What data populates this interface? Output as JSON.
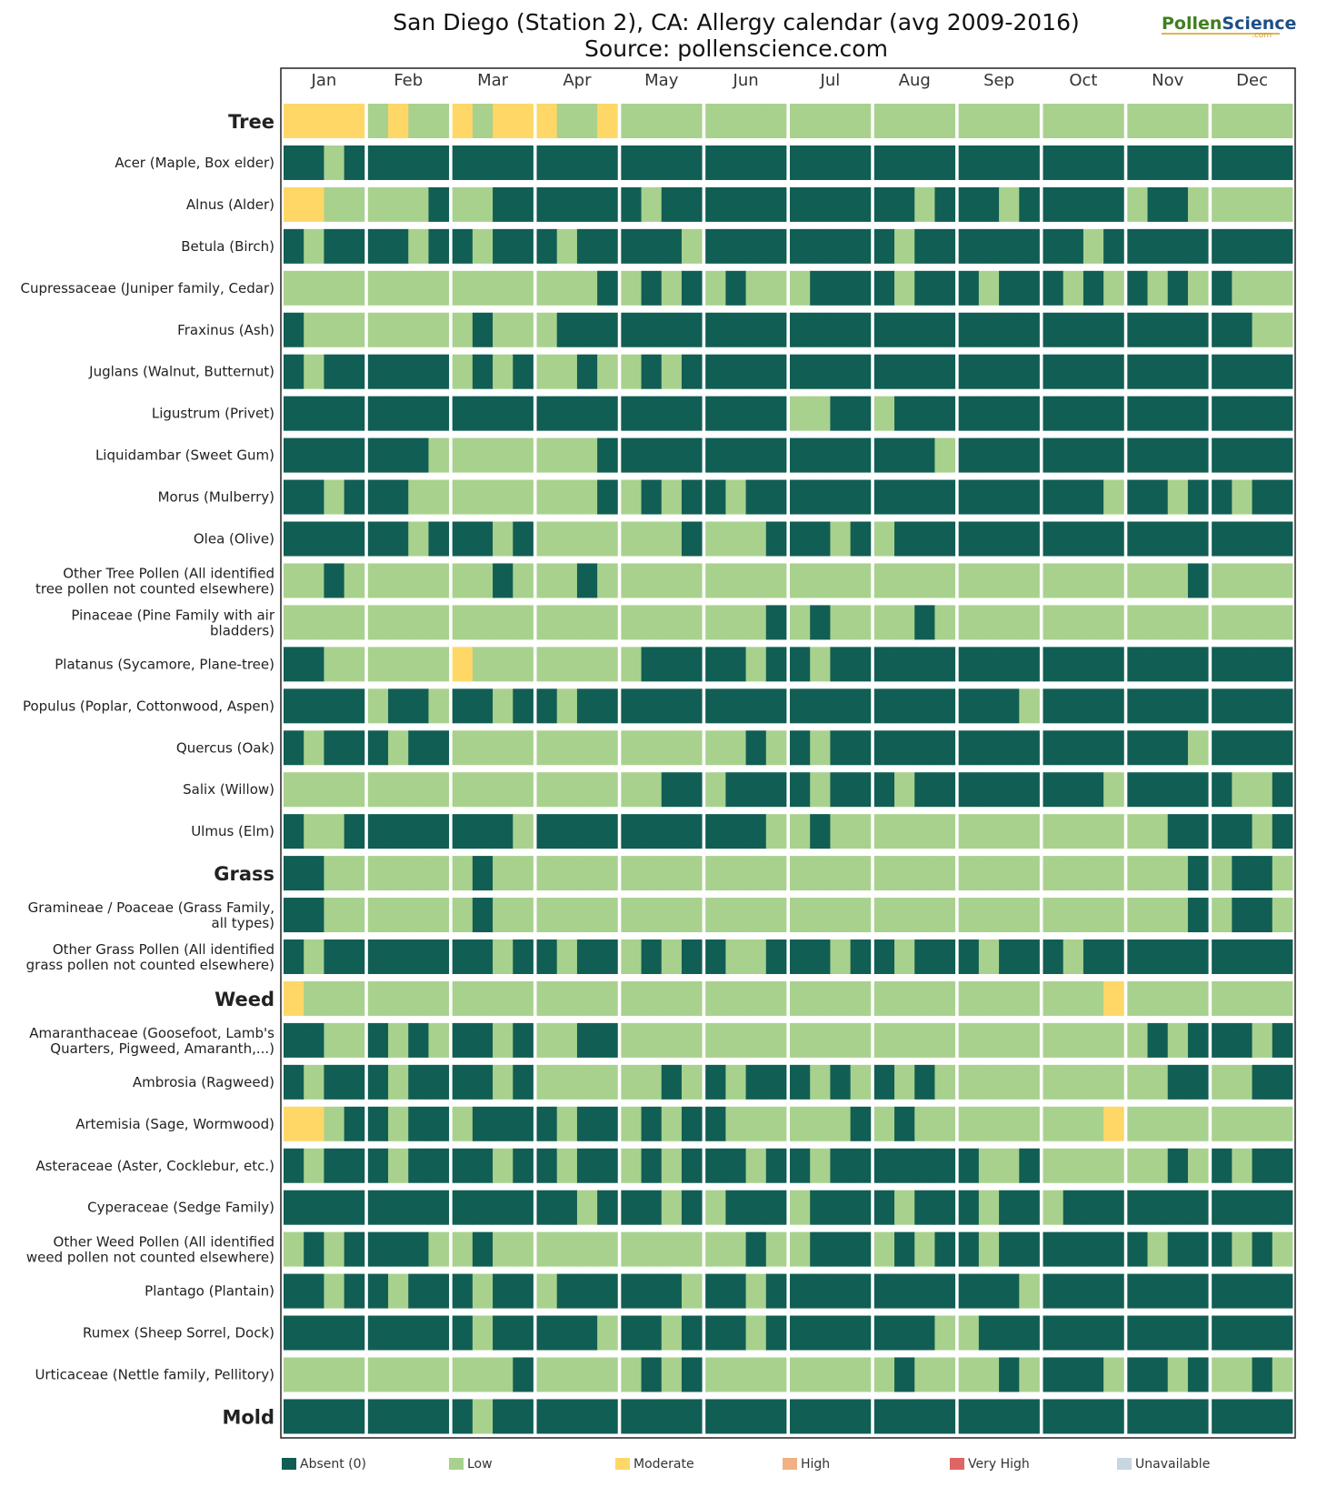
{
  "chart_data": {
    "type": "heatmap",
    "title": "San Diego (Station 2), CA: Allergy calendar (avg 2009-2016)",
    "subtitle": "Source: pollenscience.com",
    "logo": {
      "text_a": "Pollen",
      "text_b": "Science",
      "text_c": ".com"
    },
    "months": [
      "Jan",
      "Feb",
      "Mar",
      "Apr",
      "May",
      "Jun",
      "Jul",
      "Aug",
      "Sep",
      "Oct",
      "Nov",
      "Dec"
    ],
    "levels": [
      {
        "key": "A",
        "name": "Absent (0)",
        "color": "#115e54"
      },
      {
        "key": "L",
        "name": "Low",
        "color": "#a9d18e"
      },
      {
        "key": "M",
        "name": "Moderate",
        "color": "#fed767"
      },
      {
        "key": "H",
        "name": "High",
        "color": "#f2b184"
      },
      {
        "key": "V",
        "name": "Very High",
        "color": "#df6565"
      },
      {
        "key": "U",
        "name": "Unavailable",
        "color": "#c8d6df"
      }
    ],
    "segment_note": "each month string gives one level per ~1/4 month",
    "rows": [
      {
        "label": "Tree",
        "group": true,
        "months": [
          "MMMM",
          "LMLL",
          "MLMM",
          "MLLM",
          "LLLL",
          "LLLL",
          "LLLL",
          "LLLL",
          "LLLL",
          "LLLL",
          "LLLL",
          "LLLL"
        ]
      },
      {
        "label": "Acer (Maple, Box elder)",
        "months": [
          "AALA",
          "AAAA",
          "AAAA",
          "AAAA",
          "AAAA",
          "AAAA",
          "AAAA",
          "AAAA",
          "AAAA",
          "AAAA",
          "AAAA",
          "AAAA"
        ]
      },
      {
        "label": "Alnus (Alder)",
        "months": [
          "MMLL",
          "LLLA",
          "LLAA",
          "AAAA",
          "ALAA",
          "AAAA",
          "AAAA",
          "AALA",
          "AALA",
          "AAAA",
          "LAAL",
          "LLLL"
        ]
      },
      {
        "label": "Betula (Birch)",
        "months": [
          "ALAA",
          "AALA",
          "ALAA",
          "ALAA",
          "AAAL",
          "AAAA",
          "AAAA",
          "ALAA",
          "AAAA",
          "AALA",
          "AAAA",
          "AAAA"
        ]
      },
      {
        "label": "Cupressaceae (Juniper family, Cedar)",
        "months": [
          "LLLL",
          "LLLL",
          "LLLL",
          "LLLA",
          "LALA",
          "LALL",
          "LAAA",
          "ALAA",
          "ALAA",
          "ALAL",
          "ALAL",
          "ALLL"
        ]
      },
      {
        "label": "Fraxinus (Ash)",
        "months": [
          "ALLL",
          "LLLL",
          "LALL",
          "LAAA",
          "AAAA",
          "AAAA",
          "AAAA",
          "AAAA",
          "AAAA",
          "AAAA",
          "AAAA",
          "AALL"
        ]
      },
      {
        "label": "Juglans (Walnut, Butternut)",
        "months": [
          "ALAA",
          "AAAA",
          "LALA",
          "LLAL",
          "LALA",
          "AAAA",
          "AAAA",
          "AAAA",
          "AAAA",
          "AAAA",
          "AAAA",
          "AAAA"
        ]
      },
      {
        "label": "Ligustrum (Privet)",
        "months": [
          "AAAA",
          "AAAA",
          "AAAA",
          "AAAA",
          "AAAA",
          "AAAA",
          "LLAA",
          "LAAA",
          "AAAA",
          "AAAA",
          "AAAA",
          "AAAA"
        ]
      },
      {
        "label": "Liquidambar (Sweet Gum)",
        "months": [
          "AAAA",
          "AAAL",
          "LLLL",
          "LLLA",
          "AAAA",
          "AAAA",
          "AAAA",
          "AAAL",
          "AAAA",
          "AAAA",
          "AAAA",
          "AAAA"
        ]
      },
      {
        "label": "Morus (Mulberry)",
        "months": [
          "AALA",
          "AALL",
          "LLLL",
          "LLLA",
          "LALA",
          "ALAA",
          "AAAA",
          "AAAA",
          "AAAA",
          "AAAL",
          "AALA",
          "ALAA"
        ]
      },
      {
        "label": "Olea (Olive)",
        "months": [
          "AAAA",
          "AALA",
          "AALA",
          "LLLL",
          "LLLA",
          "LLLA",
          "AALA",
          "LAAA",
          "AAAA",
          "AAAA",
          "AAAA",
          "AAAA"
        ]
      },
      {
        "label": "Other Tree Pollen (All identified\ntree pollen not counted elsewhere)",
        "months": [
          "LLAL",
          "LLLL",
          "LLAL",
          "LLAL",
          "LLLL",
          "LLLL",
          "LLLL",
          "LLLL",
          "LLLL",
          "LLLL",
          "LLLA",
          "LLLL"
        ]
      },
      {
        "label": "Pinaceae (Pine Family with air\nbladders)",
        "months": [
          "LLLL",
          "LLLL",
          "LLLL",
          "LLLL",
          "LLLL",
          "LLLA",
          "LALL",
          "LLAL",
          "LLLL",
          "LLLL",
          "LLLL",
          "LLLL"
        ]
      },
      {
        "label": "Platanus (Sycamore, Plane-tree)",
        "months": [
          "AALL",
          "LLLL",
          "MLLL",
          "LLLL",
          "LAAA",
          "AALA",
          "ALAA",
          "AAAA",
          "AAAA",
          "AAAA",
          "AAAA",
          "AAAA"
        ]
      },
      {
        "label": "Populus (Poplar, Cottonwood, Aspen)",
        "months": [
          "AAAA",
          "LAAL",
          "AALA",
          "ALAA",
          "AAAA",
          "AAAA",
          "AAAA",
          "AAAA",
          "AAAL",
          "AAAA",
          "AAAA",
          "AAAA"
        ]
      },
      {
        "label": "Quercus (Oak)",
        "months": [
          "ALAA",
          "ALAA",
          "LLLL",
          "LLLL",
          "LLLL",
          "LLAL",
          "ALAA",
          "AAAA",
          "AAAA",
          "AAAA",
          "AAAL",
          "AAAA"
        ]
      },
      {
        "label": "Salix (Willow)",
        "months": [
          "LLLL",
          "LLLL",
          "LLLL",
          "LLLL",
          "LLAA",
          "LAAA",
          "ALAA",
          "ALAA",
          "AAAA",
          "AAAL",
          "AAAA",
          "ALLA"
        ]
      },
      {
        "label": "Ulmus (Elm)",
        "months": [
          "ALLA",
          "AAAA",
          "AAAL",
          "AAAA",
          "AAAA",
          "AAAL",
          "LALL",
          "LLLL",
          "LLLL",
          "LLLL",
          "LLAA",
          "AALA"
        ]
      },
      {
        "label": "Grass",
        "group": true,
        "months": [
          "AALL",
          "LLLL",
          "LALL",
          "LLLL",
          "LLLL",
          "LLLL",
          "LLLL",
          "LLLL",
          "LLLL",
          "LLLL",
          "LLLA",
          "LAAL"
        ]
      },
      {
        "label": "Gramineae / Poaceae (Grass Family,\nall types)",
        "months": [
          "AALL",
          "LLLL",
          "LALL",
          "LLLL",
          "LLLL",
          "LLLL",
          "LLLL",
          "LLLL",
          "LLLL",
          "LLLL",
          "LLLA",
          "LAAL"
        ]
      },
      {
        "label": "Other Grass Pollen (All identified\ngrass pollen not counted elsewhere)",
        "months": [
          "ALAA",
          "AAAA",
          "AALA",
          "ALAA",
          "LALA",
          "ALLA",
          "AALA",
          "ALAA",
          "ALAA",
          "ALAA",
          "AAAA",
          "AAAA"
        ]
      },
      {
        "label": "Weed",
        "group": true,
        "months": [
          "MLLL",
          "LLLL",
          "LLLL",
          "LLLL",
          "LLLL",
          "LLLL",
          "LLLL",
          "LLLL",
          "LLLL",
          "LLLM",
          "LLLL",
          "LLLL"
        ]
      },
      {
        "label": "Amaranthaceae (Goosefoot, Lamb's\nQuarters, Pigweed, Amaranth,...)",
        "months": [
          "AALL",
          "ALAL",
          "AALA",
          "LLAA",
          "LLLL",
          "LLLL",
          "LLLL",
          "LLLL",
          "LLLL",
          "LLLL",
          "LALA",
          "AALA"
        ]
      },
      {
        "label": "Ambrosia (Ragweed)",
        "months": [
          "ALAA",
          "ALAA",
          "AALA",
          "LLLL",
          "LLAL",
          "ALAA",
          "ALAL",
          "ALAL",
          "LLLL",
          "LLLL",
          "LLAA",
          "LLAA"
        ]
      },
      {
        "label": "Artemisia (Sage, Wormwood)",
        "months": [
          "MMLA",
          "ALAA",
          "LAAA",
          "ALAA",
          "LALA",
          "ALLL",
          "LLLA",
          "LALL",
          "LLLL",
          "LLLM",
          "LLLL",
          "LLLL"
        ]
      },
      {
        "label": "Asteraceae (Aster, Cocklebur, etc.)",
        "months": [
          "ALAA",
          "ALAA",
          "AALA",
          "ALAA",
          "LALA",
          "AALA",
          "ALAA",
          "AAAA",
          "ALLA",
          "LLLL",
          "LLAL",
          "ALAA"
        ]
      },
      {
        "label": "Cyperaceae (Sedge Family)",
        "months": [
          "AAAA",
          "AAAA",
          "AAAA",
          "AALA",
          "AALA",
          "LAAA",
          "LAAA",
          "ALAA",
          "ALAA",
          "LAAA",
          "AAAA",
          "AAAA"
        ]
      },
      {
        "label": "Other Weed Pollen (All identified\nweed pollen not counted elsewhere)",
        "months": [
          "LALA",
          "AAAL",
          "LALL",
          "LLLL",
          "LLLL",
          "LLAL",
          "LAAA",
          "LALA",
          "ALAA",
          "AAAA",
          "ALAA",
          "ALAL"
        ]
      },
      {
        "label": "Plantago (Plantain)",
        "months": [
          "AALA",
          "ALAA",
          "ALAA",
          "LAAA",
          "AAAL",
          "AALA",
          "AAAA",
          "AAAA",
          "AAAL",
          "AAAA",
          "AAAA",
          "AAAA"
        ]
      },
      {
        "label": "Rumex (Sheep Sorrel, Dock)",
        "months": [
          "AAAA",
          "AAAA",
          "ALAA",
          "AAAL",
          "AALA",
          "AALA",
          "AAAA",
          "AAAL",
          "LAAA",
          "AAAA",
          "AAAA",
          "AAAA"
        ]
      },
      {
        "label": "Urticaceae (Nettle family, Pellitory)",
        "months": [
          "LLLL",
          "LLLL",
          "LLLA",
          "LLLL",
          "LALA",
          "LLLL",
          "LLLL",
          "LALL",
          "LLAL",
          "AAAL",
          "AALA",
          "LLAL"
        ]
      },
      {
        "label": "Mold",
        "group": true,
        "months": [
          "AAAA",
          "AAAA",
          "ALAA",
          "AAAA",
          "AAAA",
          "AAAA",
          "AAAA",
          "AAAA",
          "AAAA",
          "AAAA",
          "AAAA",
          "AAAA"
        ]
      }
    ]
  }
}
